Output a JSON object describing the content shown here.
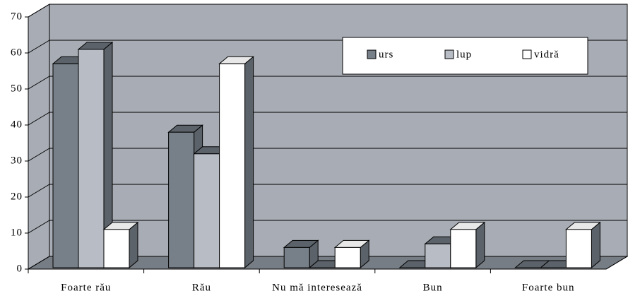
{
  "chart_data": {
    "type": "bar3d",
    "categories": [
      "Foarte rău",
      "Rău",
      "Nu mă interesează",
      "Bun",
      "Foarte bun"
    ],
    "series": [
      {
        "name": "urs",
        "color": "#778088",
        "values": [
          57,
          38,
          6,
          0,
          0
        ]
      },
      {
        "name": "lup",
        "color": "#b8bcc4",
        "values": [
          61,
          32,
          0,
          7,
          0
        ]
      },
      {
        "name": "vidră",
        "color": "#ffffff",
        "values": [
          11,
          57,
          6,
          11,
          11
        ]
      }
    ],
    "ylim": [
      0,
      70
    ],
    "yticks": [
      0,
      10,
      20,
      30,
      40,
      50,
      60,
      70
    ],
    "grid": true,
    "legend": "top-right"
  }
}
